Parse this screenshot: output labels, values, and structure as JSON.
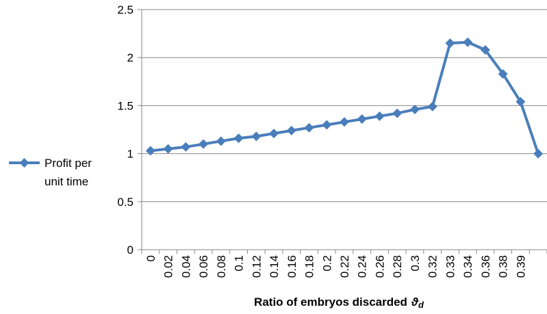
{
  "chart_data": {
    "type": "line",
    "title": "",
    "xlabel": "Ratio of embryos discarded",
    "xlabel_symbol": "ϑ",
    "xlabel_subscript": "d",
    "ylabel": "",
    "ylim": [
      0,
      2.5
    ],
    "yticks": [
      "0",
      "0.5",
      "1",
      "1.5",
      "2",
      "2.5"
    ],
    "grid": true,
    "legend_position": "left",
    "x": [
      "0",
      "0.02",
      "0.04",
      "0.06",
      "0.08",
      "0.1",
      "0.12",
      "0.14",
      "0.16",
      "0.18",
      "0.2",
      "0.22",
      "0.24",
      "0.26",
      "0.28",
      "0.3",
      "0.32",
      "0.33",
      "0.34",
      "0.36",
      "0.38",
      "0.39",
      ""
    ],
    "series": [
      {
        "name_line1": "Profit per",
        "name_line2": "unit time",
        "color": "#4a7ebb",
        "values": [
          1.03,
          1.05,
          1.07,
          1.1,
          1.13,
          1.16,
          1.18,
          1.21,
          1.24,
          1.27,
          1.3,
          1.33,
          1.36,
          1.39,
          1.42,
          1.46,
          1.49,
          2.15,
          2.16,
          2.08,
          1.83,
          1.54,
          1.0
        ]
      }
    ]
  }
}
